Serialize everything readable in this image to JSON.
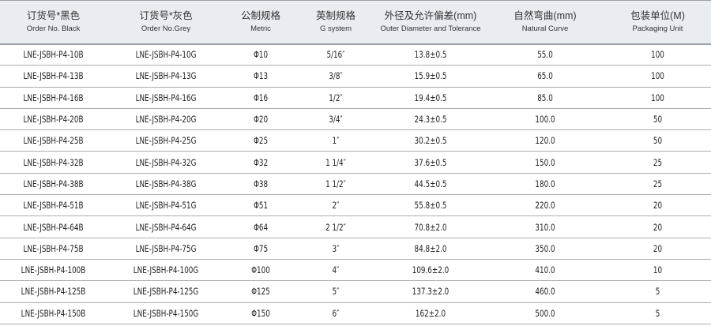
{
  "headers": [
    {
      "zh": "订货号*黑色",
      "en": "Order No. Black"
    },
    {
      "zh": "订货号*灰色",
      "en": "Order No.Grey"
    },
    {
      "zh": "公制规格",
      "en": "Metric"
    },
    {
      "zh": "英制规格",
      "en": "G system"
    },
    {
      "zh": "外径及允许偏差(mm)",
      "en": "Outer Diameter and Tolerance"
    },
    {
      "zh": "自然弯曲(mm)",
      "en": "Natural Curve"
    },
    {
      "zh": "包装单位(M)",
      "en": "Packaging Unit"
    }
  ],
  "rows": [
    [
      "LNE-JSBH-P4-10B",
      "LNE-JSBH-P4-10G",
      "Φ10",
      "5/16″",
      "13.8±0.5",
      "55.0",
      "100"
    ],
    [
      "LNE-JSBH-P4-13B",
      "LNE-JSBH-P4-13G",
      "Φ13",
      "3/8″",
      "15.9±0.5",
      "65.0",
      "100"
    ],
    [
      "LNE-JSBH-P4-16B",
      "LNE-JSBH-P4-16G",
      "Φ16",
      "1/2″",
      "19.4±0.5",
      "85.0",
      "100"
    ],
    [
      "LNE-JSBH-P4-20B",
      "LNE-JSBH-P4-20G",
      "Φ20",
      "3/4″",
      "24.3±0.5",
      "100.0",
      "50"
    ],
    [
      "LNE-JSBH-P4-25B",
      "LNE-JSBH-P4-25G",
      "Φ25",
      "1″",
      "30.2±0.5",
      "120.0",
      "50"
    ],
    [
      "LNE-JSBH-P4-32B",
      "LNE-JSBH-P4-32G",
      "Φ32",
      "1 1/4″",
      "37.6±0.5",
      "150.0",
      "25"
    ],
    [
      "LNE-JSBH-P4-38B",
      "LNE-JSBH-P4-38G",
      "Φ38",
      "1 1/2″",
      "44.5±0.5",
      "180.0",
      "25"
    ],
    [
      "LNE-JSBH-P4-51B",
      "LNE-JSBH-P4-51G",
      "Φ51",
      "2″",
      "55.8±0.5",
      "220.0",
      "20"
    ],
    [
      "LNE-JSBH-P4-64B",
      "LNE-JSBH-P4-64G",
      "Φ64",
      "2 1/2″",
      "70.8±2.0",
      "310.0",
      "20"
    ],
    [
      "LNE-JSBH-P4-75B",
      "LNE-JSBH-P4-75G",
      "Φ75",
      "3″",
      "84.8±2.0",
      "350.0",
      "20"
    ],
    [
      "LNE-JSBH-P4-100B",
      "LNE-JSBH-P4-100G",
      "Φ100",
      "4″",
      "109.6±2.0",
      "410.0",
      "10"
    ],
    [
      "LNE-JSBH-P4-125B",
      "LNE-JSBH-P4-125G",
      "Φ125",
      "5″",
      "137.3±2.0",
      "460.0",
      "5"
    ],
    [
      "LNE-JSBH-P4-150B",
      "LNE-JSBH-P4-150G",
      "Φ150",
      "6″",
      "162±2.0",
      "500.0",
      "5"
    ]
  ]
}
